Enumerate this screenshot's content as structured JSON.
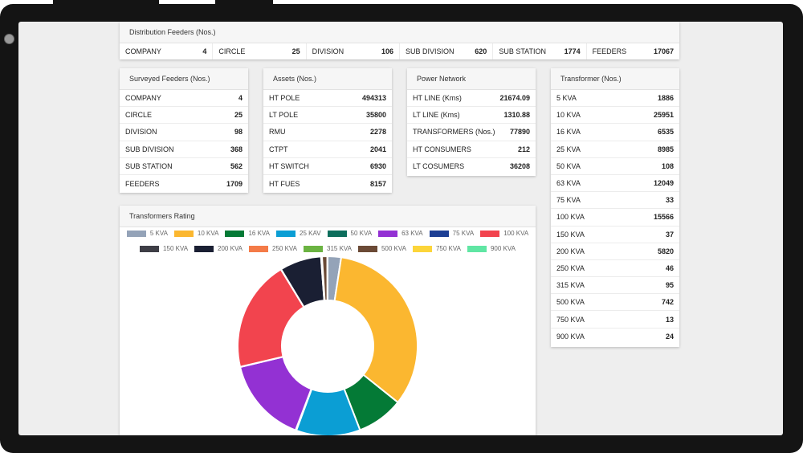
{
  "distribution": {
    "title": "Distribution Feeders (Nos.)",
    "items": [
      {
        "label": "COMPANY",
        "value": "4"
      },
      {
        "label": "CIRCLE",
        "value": "25"
      },
      {
        "label": "DIVISION",
        "value": "106"
      },
      {
        "label": "SUB DIVISION",
        "value": "620"
      },
      {
        "label": "SUB STATION",
        "value": "1774"
      },
      {
        "label": "FEEDERS",
        "value": "17067"
      }
    ]
  },
  "surveyed": {
    "title": "Surveyed Feeders (Nos.)",
    "items": [
      {
        "label": "COMPANY",
        "value": "4"
      },
      {
        "label": "CIRCLE",
        "value": "25"
      },
      {
        "label": "DIVISION",
        "value": "98"
      },
      {
        "label": "SUB DIVISION",
        "value": "368"
      },
      {
        "label": "SUB STATION",
        "value": "562"
      },
      {
        "label": "FEEDERS",
        "value": "1709"
      }
    ]
  },
  "assets": {
    "title": "Assets (Nos.)",
    "items": [
      {
        "label": "HT POLE",
        "value": "494313"
      },
      {
        "label": "LT POLE",
        "value": "35800"
      },
      {
        "label": "RMU",
        "value": "2278"
      },
      {
        "label": "CTPT",
        "value": "2041"
      },
      {
        "label": "HT SWITCH",
        "value": "6930"
      },
      {
        "label": "HT FUES",
        "value": "8157"
      }
    ]
  },
  "power": {
    "title": "Power Network",
    "items": [
      {
        "label": "HT LINE (Kms)",
        "value": "21674.09"
      },
      {
        "label": "LT LINE (Kms)",
        "value": "1310.88"
      },
      {
        "label": "TRANSFORMERS (Nos.)",
        "value": "77890"
      },
      {
        "label": "HT CONSUMERS",
        "value": "212"
      },
      {
        "label": "LT COSUMERS",
        "value": "36208"
      }
    ]
  },
  "transformer": {
    "title": "Transformer (Nos.)",
    "items": [
      {
        "label": "5 KVA",
        "value": "1886"
      },
      {
        "label": "10 KVA",
        "value": "25951"
      },
      {
        "label": "16 KVA",
        "value": "6535"
      },
      {
        "label": "25 KVA",
        "value": "8985"
      },
      {
        "label": "50 KVA",
        "value": "108"
      },
      {
        "label": "63 KVA",
        "value": "12049"
      },
      {
        "label": "75 KVA",
        "value": "33"
      },
      {
        "label": "100 KVA",
        "value": "15566"
      },
      {
        "label": "150 KVA",
        "value": "37"
      },
      {
        "label": "200 KVA",
        "value": "5820"
      },
      {
        "label": "250 KVA",
        "value": "46"
      },
      {
        "label": "315 KVA",
        "value": "95"
      },
      {
        "label": "500 KVA",
        "value": "742"
      },
      {
        "label": "750 KVA",
        "value": "13"
      },
      {
        "label": "900 KVA",
        "value": "24"
      }
    ]
  },
  "rating": {
    "title": "Transformers Rating"
  },
  "chart_data": {
    "type": "pie",
    "title": "Transformers Rating",
    "legend_position": "top",
    "categories": [
      "5 KVA",
      "10 KVA",
      "16 KVA",
      "25 KAV",
      "50 KVA",
      "63 KVA",
      "75 KVA",
      "100 KVA",
      "150 KVA",
      "200 KVA",
      "250 KVA",
      "315 KVA",
      "500 KVA",
      "750 KVA",
      "900 KVA"
    ],
    "values": [
      1886,
      25951,
      6535,
      8985,
      108,
      12049,
      33,
      15566,
      37,
      5820,
      46,
      95,
      742,
      13,
      24
    ],
    "colors": [
      "#94a3b8",
      "#fbb730",
      "#047a36",
      "#0b9ed4",
      "#0d6e5c",
      "#9331d3",
      "#1d3f94",
      "#f2444e",
      "#3e3e46",
      "#1a1f33",
      "#f47b48",
      "#6bb342",
      "#6b4a36",
      "#fcd53a",
      "#60e6a4"
    ]
  }
}
